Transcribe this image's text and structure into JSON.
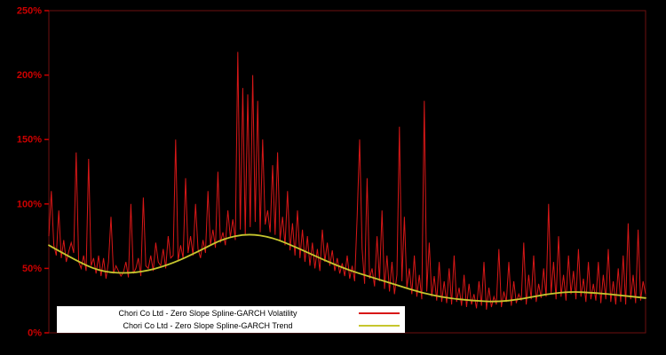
{
  "chart_data": {
    "type": "line",
    "title": "",
    "xlabel": "",
    "ylabel": "",
    "background": "#000000",
    "axis_color": "#cc0000",
    "frame_color": "#6e0f0f",
    "ylim": [
      0,
      250
    ],
    "yticks": [
      {
        "label": "0%",
        "value": 0
      },
      {
        "label": "50%",
        "value": 50
      },
      {
        "label": "100%",
        "value": 100
      },
      {
        "label": "150%",
        "value": 150
      },
      {
        "label": "200%",
        "value": 200
      },
      {
        "label": "250%",
        "value": 250
      }
    ],
    "legend": {
      "position": "bottom-inside",
      "background": "#ffffff"
    },
    "series": [
      {
        "name": "Chori Co Ltd - Zero Slope Spline-GARCH Volatility",
        "color": "#d81717",
        "stroke_width": 1,
        "x_step": 1,
        "values": [
          75,
          110,
          68,
          60,
          95,
          58,
          72,
          55,
          63,
          70,
          62,
          140,
          55,
          50,
          60,
          48,
          135,
          52,
          58,
          46,
          60,
          44,
          58,
          42,
          55,
          90,
          46,
          52,
          48,
          44,
          47,
          55,
          43,
          100,
          46,
          50,
          58,
          44,
          105,
          52,
          50,
          60,
          48,
          70,
          55,
          52,
          65,
          50,
          75,
          58,
          60,
          150,
          56,
          68,
          58,
          120,
          62,
          75,
          60,
          100,
          65,
          58,
          72,
          62,
          110,
          68,
          80,
          66,
          125,
          70,
          78,
          68,
          95,
          74,
          88,
          72,
          218,
          80,
          190,
          76,
          185,
          82,
          200,
          86,
          180,
          78,
          150,
          84,
          95,
          78,
          130,
          76,
          140,
          72,
          90,
          68,
          110,
          64,
          85,
          60,
          95,
          58,
          80,
          55,
          75,
          52,
          70,
          50,
          65,
          48,
          80,
          55,
          70,
          52,
          64,
          48,
          58,
          46,
          54,
          44,
          60,
          42,
          52,
          40,
          90,
          150,
          65,
          38,
          120,
          42,
          50,
          36,
          75,
          40,
          95,
          34,
          60,
          32,
          55,
          30,
          45,
          160,
          40,
          90,
          35,
          50,
          30,
          60,
          28,
          45,
          26,
          180,
          32,
          70,
          28,
          44,
          25,
          55,
          24,
          40,
          23,
          50,
          22,
          60,
          24,
          35,
          21,
          45,
          20,
          38,
          22,
          30,
          19,
          40,
          21,
          55,
          18,
          35,
          20,
          28,
          22,
          65,
          20,
          32,
          24,
          55,
          21,
          40,
          23,
          30,
          25,
          70,
          22,
          45,
          26,
          60,
          24,
          38,
          27,
          50,
          28,
          100,
          30,
          55,
          26,
          75,
          28,
          45,
          25,
          60,
          30,
          48,
          26,
          65,
          28,
          42,
          24,
          55,
          26,
          38,
          25,
          55,
          23,
          45,
          26,
          65,
          24,
          40,
          22,
          50,
          24,
          60,
          22,
          85,
          26,
          45,
          23,
          80,
          25,
          40,
          30
        ]
      },
      {
        "name": "Chori Co Ltd - Zero Slope Spline-GARCH Trend",
        "color": "#c6c62e",
        "stroke_width": 1.8,
        "x_step": 10,
        "values": [
          68,
          57,
          48,
          46,
          48,
          54,
          63,
          73,
          77,
          74,
          66,
          57,
          49,
          43,
          37,
          31,
          27,
          25,
          24,
          26,
          30,
          32,
          31,
          29,
          27
        ]
      }
    ]
  }
}
